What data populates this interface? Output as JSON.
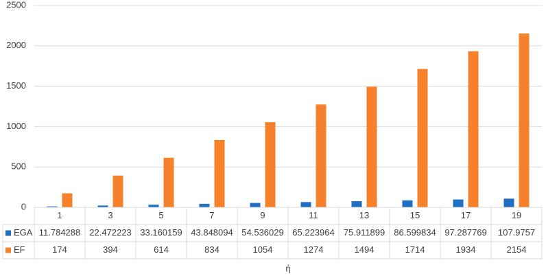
{
  "chart_data": {
    "type": "bar",
    "x_label": "ή",
    "categories": [
      "1",
      "3",
      "5",
      "7",
      "9",
      "11",
      "13",
      "15",
      "17",
      "19"
    ],
    "series": [
      {
        "name": "EGA",
        "color": "#1f6fc5",
        "values": [
          11.784288,
          22.472223,
          33.160159,
          43.848094,
          54.536029,
          65.223964,
          75.911899,
          86.599834,
          97.287769,
          107.9757
        ]
      },
      {
        "name": "EF",
        "color": "#f5812a",
        "values": [
          174,
          394,
          614,
          834,
          1054,
          1274,
          1494,
          1714,
          1934,
          2154
        ]
      }
    ],
    "ylim": [
      0,
      2500
    ],
    "yticks": [
      0,
      500,
      1000,
      1500,
      2000,
      2500
    ],
    "grid": true,
    "data_table": true
  }
}
